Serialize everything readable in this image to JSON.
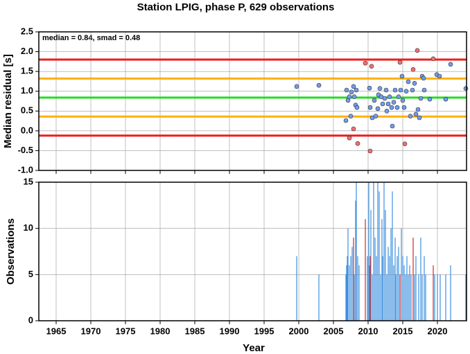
{
  "chart_data": [
    {
      "type": "scatter",
      "title": "Station LPIG, phase P, 629 observations",
      "ylabel": "Median residual [s]",
      "annotation": "median = 0.84, smad = 0.48",
      "xlim": [
        1962.5,
        2024.2
      ],
      "ylim": [
        -1.0,
        2.5
      ],
      "xticks": [
        1965,
        1970,
        1975,
        1980,
        1985,
        1990,
        1995,
        2000,
        2005,
        2010,
        2015,
        2020
      ],
      "yticks": [
        {
          "value": -1.0,
          "label": "-1.0"
        },
        -0.5,
        {
          "value": 0.0,
          "label": "0.0"
        },
        0.5,
        {
          "value": 1.0,
          "label": "1.0"
        },
        1.5,
        {
          "value": 2.0,
          "label": "2.0"
        },
        2.5
      ],
      "grid": true,
      "hlines": [
        {
          "value": 1.8,
          "color": "#ee1c1c"
        },
        {
          "value": 1.32,
          "color": "#ffb000"
        },
        {
          "value": 0.84,
          "color": "#22dd22"
        },
        {
          "value": 0.36,
          "color": "#ffb000"
        },
        {
          "value": -0.12,
          "color": "#ee1c1c"
        }
      ],
      "series": [
        {
          "color": "#6f9cf0",
          "x": [
            1999.7,
            2002.9,
            2006.9,
            2007.1,
            2007.3,
            2006.8,
            2007.6,
            2007.9,
            2008.0,
            2008.2,
            2007.5,
            2008.3,
            2008.4,
            2010.2,
            2010.3,
            2010.6,
            2010.9,
            2011.1,
            2011.4,
            2011.5,
            2011.7,
            2011.9,
            2012.1,
            2012.4,
            2012.6,
            2012.7,
            2012.9,
            2013.1,
            2013.4,
            2013.5,
            2013.7,
            2013.9,
            2014.2,
            2014.4,
            2014.7,
            2014.9,
            2015.0,
            2015.2,
            2015.5,
            2015.8,
            2016.1,
            2016.4,
            2016.7,
            2016.9,
            2017.2,
            2017.4,
            2017.6,
            2017.8,
            2018.0,
            2018.1,
            2018.9,
            2019.9,
            2020.3,
            2021.2,
            2021.9,
            2024.1
          ],
          "values": [
            1.12,
            1.15,
            1.03,
            0.77,
            0.86,
            0.26,
            0.98,
            1.12,
            0.86,
            0.65,
            0.37,
            1.03,
            0.59,
            1.08,
            0.59,
            0.33,
            0.77,
            0.37,
            0.56,
            0.91,
            1.07,
            0.86,
            0.68,
            0.82,
            1.03,
            0.5,
            0.68,
            0.86,
            0.59,
            0.12,
            0.72,
            1.03,
            0.59,
            0.86,
            1.03,
            1.38,
            0.77,
            0.59,
            1.0,
            1.24,
            0.37,
            1.03,
            1.2,
            0.42,
            0.54,
            0.33,
            0.82,
            1.38,
            1.33,
            1.03,
            0.8,
            1.42,
            1.38,
            0.8,
            1.68,
            1.07
          ]
        },
        {
          "color": "#f26f6f",
          "x": [
            2009.6,
            2010.5,
            2007.3,
            2007.9,
            2008.5,
            2010.3,
            2014.6,
            2015.3,
            2017.1,
            2019.4,
            2016.5
          ],
          "values": [
            1.71,
            1.63,
            -0.18,
            0.05,
            -0.32,
            -0.51,
            1.73,
            -0.33,
            2.03,
            1.82,
            1.55
          ]
        }
      ]
    },
    {
      "type": "bar",
      "xlabel": "Year",
      "ylabel": "Observations",
      "xlim": [
        1962.5,
        2024.2
      ],
      "ylim": [
        0,
        15
      ],
      "xticks": [
        1965,
        1970,
        1975,
        1980,
        1985,
        1990,
        1995,
        2000,
        2005,
        2010,
        2015,
        2020
      ],
      "yticks": [
        0,
        5,
        10,
        15
      ],
      "grid": true,
      "series": [
        {
          "color": "#3d8fe0",
          "x": [
            1999.7,
            2002.9,
            2006.8,
            2006.9,
            2007.0,
            2007.1,
            2007.3,
            2007.5,
            2007.7,
            2008.0,
            2008.2,
            2008.3,
            2008.5,
            2008.7,
            2009.9,
            2010.1,
            2010.2,
            2010.4,
            2010.6,
            2010.8,
            2011.0,
            2011.2,
            2011.4,
            2011.6,
            2011.8,
            2012.0,
            2012.1,
            2012.3,
            2012.5,
            2012.7,
            2012.9,
            2013.1,
            2013.3,
            2013.5,
            2013.7,
            2013.9,
            2014.0,
            2014.2,
            2014.4,
            2014.8,
            2015.0,
            2015.2,
            2015.4,
            2015.6,
            2015.8,
            2016.0,
            2016.2,
            2016.7,
            2016.9,
            2017.3,
            2017.6,
            2017.8,
            2018.1,
            2018.3,
            2019.6,
            2020.0,
            2020.4,
            2021.2,
            2021.9,
            2024.1
          ],
          "values": [
            7,
            5,
            5,
            6,
            7,
            10,
            6,
            7,
            8,
            5,
            13,
            15,
            7,
            6,
            7,
            15,
            6,
            12,
            5,
            15,
            9,
            7,
            15,
            14,
            5,
            11,
            7,
            15,
            12,
            5,
            8,
            7,
            10,
            14,
            6,
            9,
            5,
            7,
            8,
            10,
            7,
            6,
            5,
            7,
            5,
            6,
            5,
            5,
            7,
            5,
            9,
            5,
            7,
            5,
            5,
            5,
            5,
            5,
            6,
            5
          ]
        },
        {
          "color": "#dd2222",
          "x": [
            2007.9,
            2009.6,
            2010.3,
            2014.6,
            2016.5,
            2019.4
          ],
          "values": [
            9,
            11,
            7,
            5,
            9,
            6
          ]
        }
      ]
    }
  ]
}
